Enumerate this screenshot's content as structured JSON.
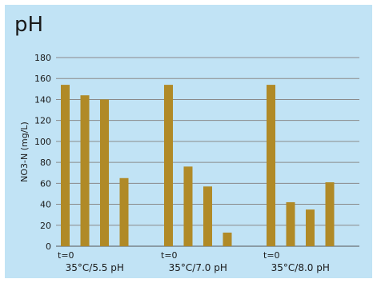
{
  "chart_data": {
    "type": "bar",
    "title": "pH",
    "ylabel": "NO3-N (mg/L)",
    "xlabel": "",
    "ylim": [
      0,
      180
    ],
    "yticks": [
      0,
      20,
      40,
      60,
      80,
      100,
      120,
      140,
      160,
      180
    ],
    "grid": true,
    "bar_color": "#b08a27",
    "groups": [
      {
        "label": "35°C/5.5 pH",
        "first_bar_label": "t=0",
        "values": [
          154,
          144,
          140,
          65
        ]
      },
      {
        "label": "35°C/7.0 pH",
        "first_bar_label": "t=0",
        "values": [
          154,
          76,
          57,
          13
        ]
      },
      {
        "label": "35°C/8.0 pH",
        "first_bar_label": "t=0",
        "values": [
          154,
          42,
          35,
          61
        ]
      }
    ]
  }
}
